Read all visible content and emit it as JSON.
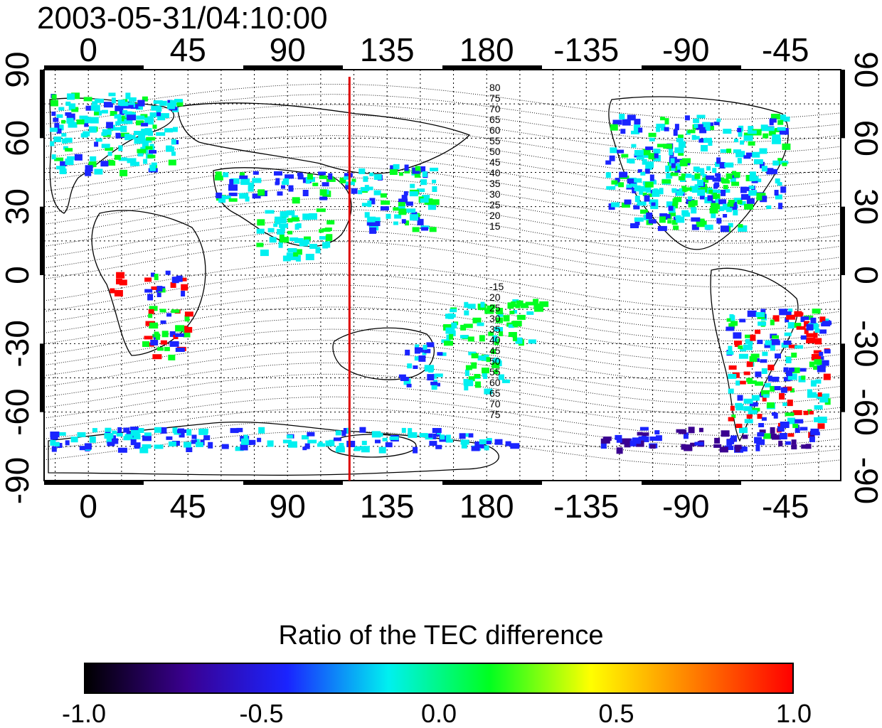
{
  "map": {
    "title": "2003-05-31/04:10:00",
    "lon_ticks": [
      "0",
      "45",
      "90",
      "135",
      "180",
      "-135",
      "-90",
      "-45"
    ],
    "lat_ticks": [
      "90",
      "60",
      "30",
      "0",
      "-30",
      "-60",
      "-90"
    ],
    "magnetic_lat_labels_north": [
      "80",
      "75",
      "70",
      "65",
      "60",
      "55",
      "50",
      "45",
      "40",
      "35",
      "30",
      "25",
      "20",
      "15"
    ],
    "magnetic_lat_labels_south": [
      "-15",
      "20",
      "25",
      "30",
      "35",
      "40",
      "45",
      "50",
      "55",
      "60",
      "65",
      "70",
      "75"
    ],
    "marker_line": {
      "longitude": 118,
      "color": "#dd0000"
    },
    "colors": {
      "land_outline": "#000000",
      "grid": "#000000",
      "axis_bar": "#000000"
    }
  },
  "colorbar": {
    "title": "Ratio of the TEC difference",
    "range": [
      -1.0,
      1.0
    ],
    "ticks": [
      "-1.0",
      "-0.5",
      "0.0",
      "0.5",
      "1.0"
    ],
    "colormap": [
      "#000000",
      "#3a0090",
      "#1a24ff",
      "#00f0f0",
      "#00ff20",
      "#ffff00",
      "#ff8000",
      "#ff0000"
    ]
  }
}
